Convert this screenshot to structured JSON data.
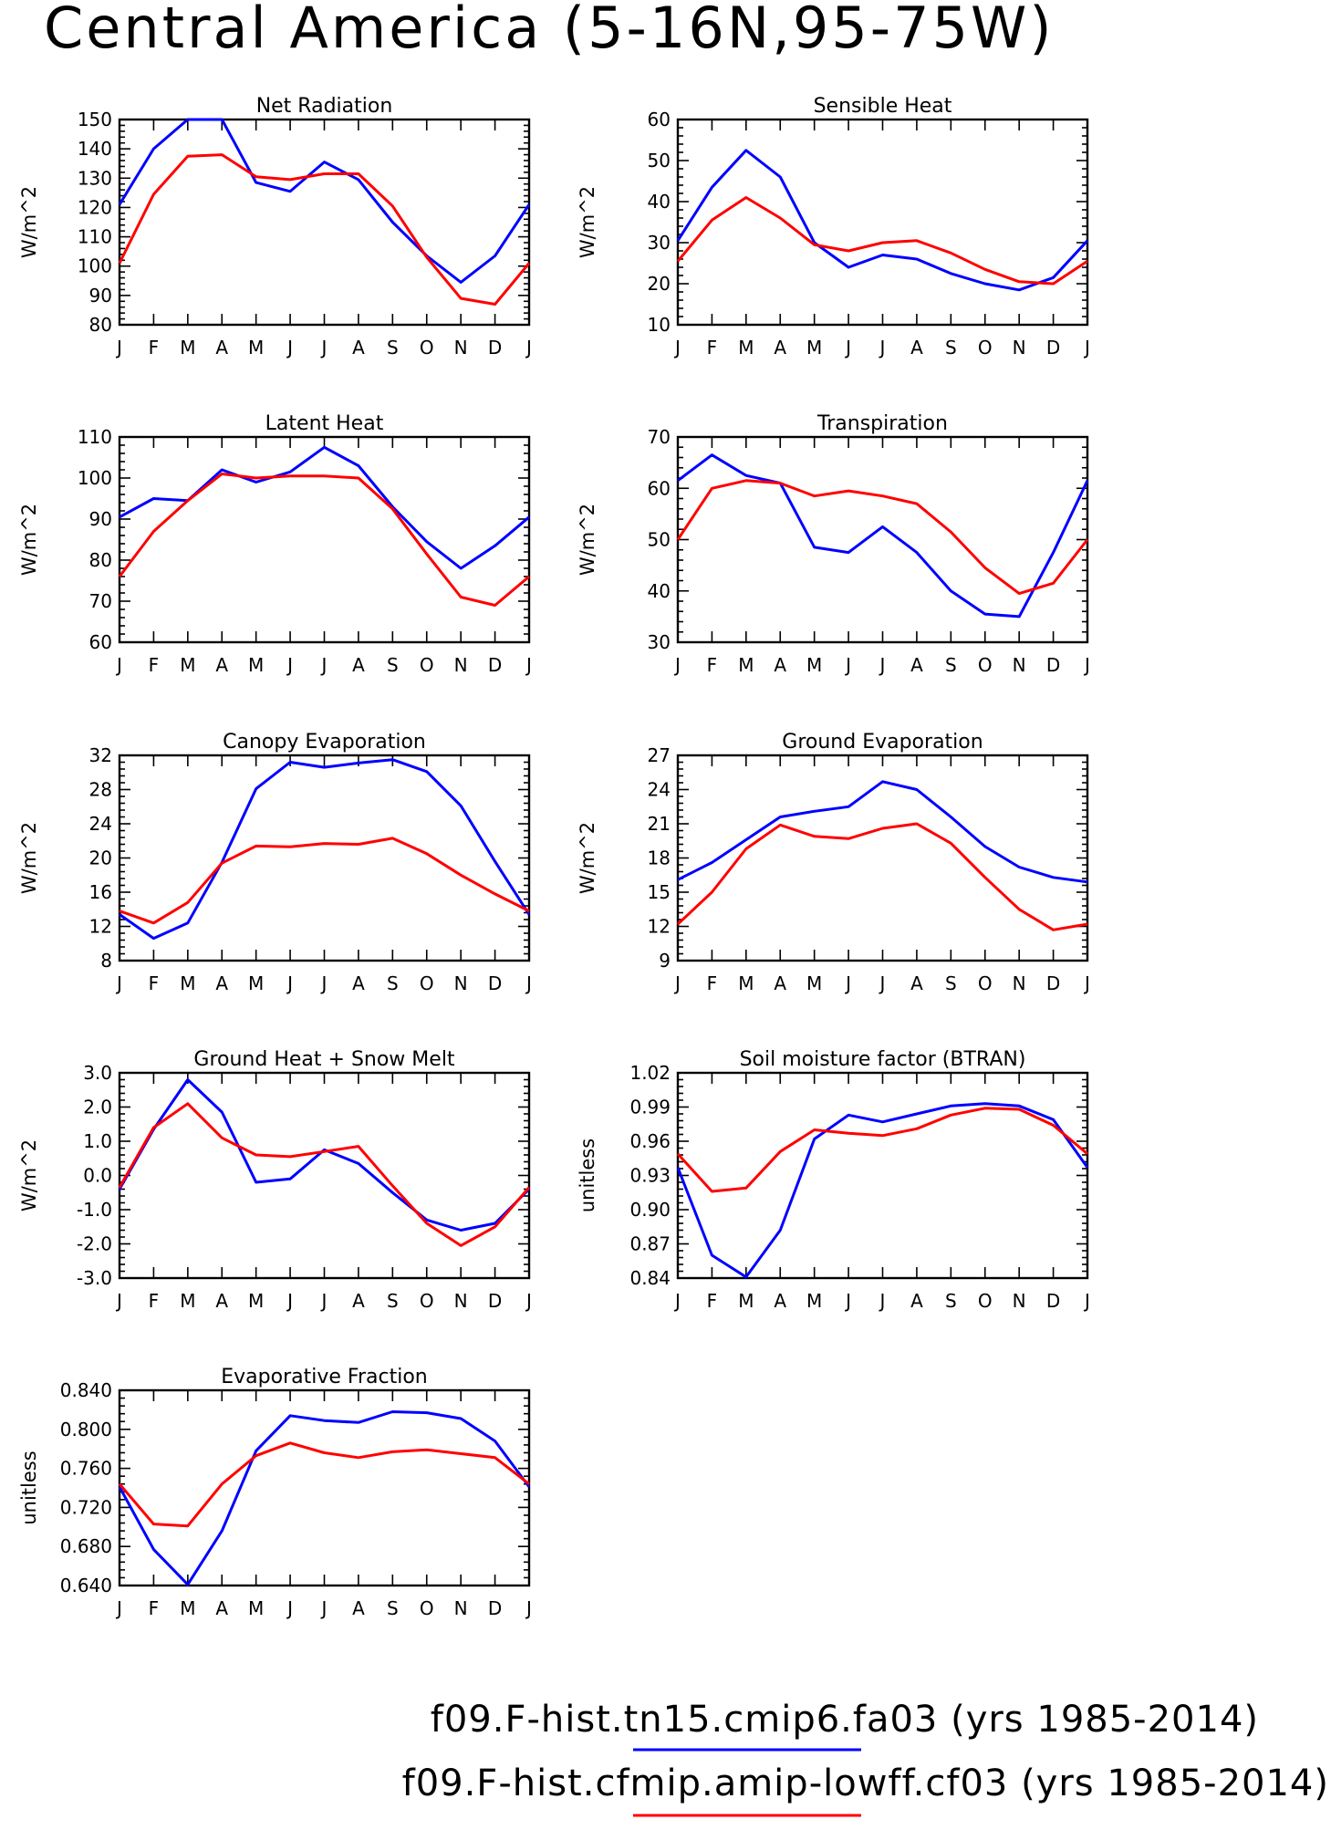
{
  "title": "Central America (5-16N,95-75W)",
  "months": [
    "J",
    "F",
    "M",
    "A",
    "M",
    "J",
    "J",
    "A",
    "S",
    "O",
    "N",
    "D",
    "J"
  ],
  "colors": {
    "case1": "#0000ff",
    "case2": "#ff0000"
  },
  "legend": [
    {
      "label": "f09.F-hist.tn15.cmip6.fa03 (yrs 1985-2014)",
      "color": "#0000ff"
    },
    {
      "label": "f09.F-hist.cfmip.amip-lowff.cf03 (yrs 1985-2014)",
      "color": "#ff0000"
    }
  ],
  "chart_data": [
    {
      "type": "line",
      "title": "Net Radiation",
      "ylabel": "W/m^2",
      "ylim": [
        80,
        150
      ],
      "yticks": [
        "80",
        "90",
        "100",
        "110",
        "120",
        "130",
        "140",
        "150"
      ],
      "categories": [
        "J",
        "F",
        "M",
        "A",
        "M",
        "J",
        "J",
        "A",
        "S",
        "O",
        "N",
        "D",
        "J"
      ],
      "series": [
        {
          "values": [
            121,
            140,
            150,
            150,
            128.5,
            125.5,
            135.5,
            129.5,
            115,
            103.5,
            94.5,
            103.5,
            121
          ],
          "color": "#0000ff"
        },
        {
          "values": [
            101,
            124.5,
            137.5,
            138,
            130.5,
            129.5,
            131.5,
            131.5,
            120.5,
            103,
            89,
            87,
            101
          ],
          "color": "#ff0000"
        }
      ]
    },
    {
      "type": "line",
      "title": "Sensible Heat",
      "ylabel": "W/m^2",
      "ylim": [
        10,
        60
      ],
      "yticks": [
        "10",
        "20",
        "30",
        "40",
        "50",
        "60"
      ],
      "categories": [
        "J",
        "F",
        "M",
        "A",
        "M",
        "J",
        "J",
        "A",
        "S",
        "O",
        "N",
        "D",
        "J"
      ],
      "series": [
        {
          "values": [
            30.5,
            43.5,
            52.5,
            46,
            30,
            24,
            27,
            26,
            22.5,
            20,
            18.5,
            21.5,
            30.5
          ],
          "color": "#0000ff"
        },
        {
          "values": [
            25.5,
            35.5,
            41,
            36,
            29.5,
            28,
            30,
            30.5,
            27.5,
            23.5,
            20.5,
            20,
            25.5
          ],
          "color": "#ff0000"
        }
      ]
    },
    {
      "type": "line",
      "title": "Latent Heat",
      "ylabel": "W/m^2",
      "ylim": [
        60,
        110
      ],
      "yticks": [
        "60",
        "70",
        "80",
        "90",
        "100",
        "110"
      ],
      "categories": [
        "J",
        "F",
        "M",
        "A",
        "M",
        "J",
        "J",
        "A",
        "S",
        "O",
        "N",
        "D",
        "J"
      ],
      "series": [
        {
          "values": [
            90.5,
            95,
            94.5,
            102,
            99,
            101.5,
            107.5,
            103,
            93,
            84.5,
            78,
            83.5,
            90.5
          ],
          "color": "#0000ff"
        },
        {
          "values": [
            76,
            87,
            94.5,
            101,
            100,
            100.5,
            100.5,
            100,
            92.5,
            81.5,
            71,
            69,
            76
          ],
          "color": "#ff0000"
        }
      ]
    },
    {
      "type": "line",
      "title": "Transpiration",
      "ylabel": "W/m^2",
      "ylim": [
        30,
        70
      ],
      "yticks": [
        "30",
        "40",
        "50",
        "60",
        "70"
      ],
      "categories": [
        "J",
        "F",
        "M",
        "A",
        "M",
        "J",
        "J",
        "A",
        "S",
        "O",
        "N",
        "D",
        "J"
      ],
      "series": [
        {
          "values": [
            61.5,
            66.5,
            62.5,
            61,
            48.5,
            47.5,
            52.5,
            47.5,
            40,
            35.5,
            35,
            47.5,
            61.5
          ],
          "color": "#0000ff"
        },
        {
          "values": [
            50,
            60,
            61.5,
            61,
            58.5,
            59.5,
            58.5,
            57,
            51.5,
            44.5,
            39.5,
            41.5,
            50
          ],
          "color": "#ff0000"
        }
      ]
    },
    {
      "type": "line",
      "title": "Canopy Evaporation",
      "ylabel": "W/m^2",
      "ylim": [
        8,
        32
      ],
      "yticks": [
        "8",
        "12",
        "16",
        "20",
        "24",
        "28",
        "32"
      ],
      "categories": [
        "J",
        "F",
        "M",
        "A",
        "M",
        "J",
        "J",
        "A",
        "S",
        "O",
        "N",
        "D",
        "J"
      ],
      "series": [
        {
          "values": [
            13.4,
            10.6,
            12.4,
            19.5,
            28.1,
            31.2,
            30.6,
            31.1,
            31.5,
            30.1,
            26.1,
            19.6,
            13.4
          ],
          "color": "#0000ff"
        },
        {
          "values": [
            13.8,
            12.4,
            14.8,
            19.4,
            21.4,
            21.3,
            21.7,
            21.6,
            22.3,
            20.5,
            18,
            15.8,
            13.8
          ],
          "color": "#ff0000"
        }
      ]
    },
    {
      "type": "line",
      "title": "Ground Evaporation",
      "ylabel": "W/m^2",
      "ylim": [
        9,
        27
      ],
      "yticks": [
        "9",
        "12",
        "15",
        "18",
        "21",
        "24",
        "27"
      ],
      "categories": [
        "J",
        "F",
        "M",
        "A",
        "M",
        "J",
        "J",
        "A",
        "S",
        "O",
        "N",
        "D",
        "J"
      ],
      "series": [
        {
          "values": [
            16.1,
            17.6,
            19.6,
            21.6,
            22.1,
            22.5,
            24.7,
            24,
            21.6,
            19,
            17.2,
            16.3,
            15.9
          ],
          "color": "#0000ff"
        },
        {
          "values": [
            12.2,
            15,
            18.8,
            20.9,
            19.9,
            19.7,
            20.6,
            21,
            19.3,
            16.3,
            13.5,
            11.7,
            12.2
          ],
          "color": "#ff0000"
        }
      ]
    },
    {
      "type": "line",
      "title": "Ground Heat + Snow Melt",
      "ylabel": "W/m^2",
      "ylim": [
        -3,
        3
      ],
      "yticks": [
        "-3.0",
        "-2.0",
        "-1.0",
        "0.0",
        "1.0",
        "2.0",
        "3.0"
      ],
      "categories": [
        "J",
        "F",
        "M",
        "A",
        "M",
        "J",
        "J",
        "A",
        "S",
        "O",
        "N",
        "D",
        "J"
      ],
      "series": [
        {
          "values": [
            -0.4,
            1.35,
            2.8,
            1.85,
            -0.2,
            -0.1,
            0.75,
            0.35,
            -0.5,
            -1.3,
            -1.6,
            -1.4,
            -0.4
          ],
          "color": "#0000ff"
        },
        {
          "values": [
            -0.35,
            1.4,
            2.1,
            1.1,
            0.6,
            0.55,
            0.7,
            0.85,
            -0.3,
            -1.4,
            -2.05,
            -1.5,
            -0.35
          ],
          "color": "#ff0000"
        }
      ]
    },
    {
      "type": "line",
      "title": "Soil moisture factor (BTRAN)",
      "ylabel": "unitless",
      "ylim": [
        0.84,
        1.02
      ],
      "yticks": [
        "0.84",
        "0.87",
        "0.90",
        "0.93",
        "0.96",
        "0.99",
        "1.02"
      ],
      "categories": [
        "J",
        "F",
        "M",
        "A",
        "M",
        "J",
        "J",
        "A",
        "S",
        "O",
        "N",
        "D",
        "J"
      ],
      "series": [
        {
          "values": [
            0.937,
            0.86,
            0.841,
            0.882,
            0.962,
            0.983,
            0.977,
            0.984,
            0.991,
            0.993,
            0.991,
            0.979,
            0.937
          ],
          "color": "#0000ff"
        },
        {
          "values": [
            0.949,
            0.916,
            0.919,
            0.951,
            0.97,
            0.967,
            0.965,
            0.971,
            0.983,
            0.989,
            0.988,
            0.974,
            0.949
          ],
          "color": "#ff0000"
        }
      ]
    },
    {
      "type": "line",
      "title": "Evaporative Fraction",
      "ylabel": "unitless",
      "ylim": [
        0.64,
        0.84
      ],
      "yticks": [
        "0.640",
        "0.680",
        "0.720",
        "0.760",
        "0.800",
        "0.840"
      ],
      "categories": [
        "J",
        "F",
        "M",
        "A",
        "M",
        "J",
        "J",
        "A",
        "S",
        "O",
        "N",
        "D",
        "J"
      ],
      "series": [
        {
          "values": [
            0.741,
            0.677,
            0.641,
            0.696,
            0.778,
            0.814,
            0.809,
            0.807,
            0.818,
            0.817,
            0.811,
            0.788,
            0.741
          ],
          "color": "#0000ff"
        },
        {
          "values": [
            0.744,
            0.703,
            0.701,
            0.744,
            0.773,
            0.786,
            0.776,
            0.771,
            0.777,
            0.779,
            0.775,
            0.771,
            0.744
          ],
          "color": "#ff0000"
        }
      ]
    }
  ]
}
